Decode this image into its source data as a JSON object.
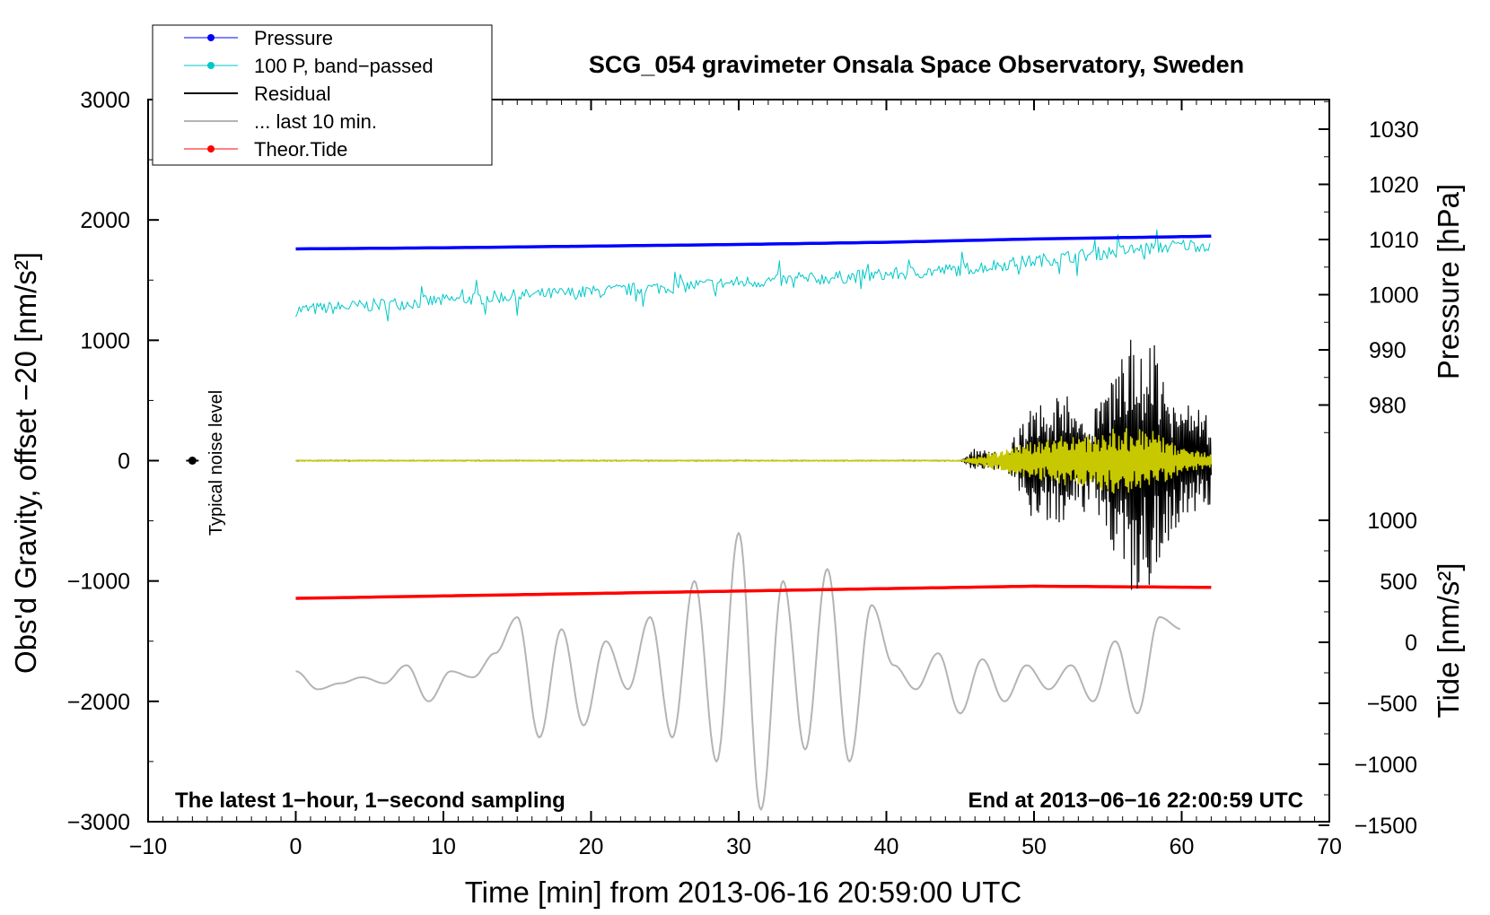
{
  "chart_data": {
    "type": "line",
    "title": "SCG_054 gravimeter Onsala Space Observatory, Sweden",
    "xlabel": "Time [min] from 2013-06-16 20:59:00 UTC",
    "ylabel_left": "Obs'd Gravity, offset −20 [nm/s²]",
    "ylabel_right_top": "Pressure [hPa]",
    "ylabel_right_bottom": "Tide [nm/s²]",
    "xlim": [
      -10,
      70
    ],
    "ylim": [
      -3000,
      3000
    ],
    "pressure_axis_range": [
      975,
      1035
    ],
    "tide_axis_range": [
      -1500,
      1000
    ],
    "x_ticks": [
      "−10",
      "0",
      "10",
      "20",
      "30",
      "40",
      "50",
      "60",
      "70"
    ],
    "y_ticks": [
      "3000",
      "2000",
      "1000",
      "0",
      "−1000",
      "−2000",
      "−3000"
    ],
    "pressure_ticks": [
      "1030",
      "1020",
      "1010",
      "1000",
      "990",
      "980"
    ],
    "tide_ticks": [
      "1000",
      "500",
      "0",
      "−500",
      "−1000",
      "−1500"
    ],
    "legend": {
      "placement": "top-left",
      "entries": [
        {
          "label": "Pressure",
          "color": "#0000ff",
          "marker": true
        },
        {
          "label": "100 P, band−passed",
          "color": "#00c8c8",
          "marker": true
        },
        {
          "label": "Residual",
          "color": "#000000",
          "marker": false
        },
        {
          "label": "... last 10 min.",
          "color": "#b4b4b4",
          "marker": false
        },
        {
          "label": "Theor.Tide",
          "color": "#ff0000",
          "marker": true
        }
      ]
    },
    "annotations": {
      "bottom_left": "The latest 1−hour, 1−second sampling",
      "bottom_right": "End at 2013−06−16 22:00:59 UTC",
      "noise_label": "Typical noise level",
      "noise_point": {
        "x": -7,
        "y": 0
      }
    },
    "series": [
      {
        "name": "Pressure",
        "axis": "pressure",
        "color": "#0000ff",
        "x": [
          0,
          10,
          20,
          30,
          40,
          50,
          62
        ],
        "y": [
          1008.3,
          1008.5,
          1008.8,
          1009.1,
          1009.5,
          1010.1,
          1010.6
        ]
      },
      {
        "name": "100 P, band-passed",
        "axis": "left",
        "color": "#00c8c8",
        "x": [
          0,
          5,
          10,
          15,
          20,
          25,
          30,
          35,
          40,
          45,
          50,
          55,
          60,
          62
        ],
        "y": [
          1250,
          1290,
          1330,
          1370,
          1400,
          1440,
          1480,
          1510,
          1545,
          1590,
          1660,
          1730,
          1790,
          1790
        ]
      },
      {
        "name": "Residual",
        "axis": "left",
        "color": "#000000",
        "x": [
          0,
          45,
          46,
          48,
          50,
          52,
          54,
          56,
          57,
          58,
          60,
          62
        ],
        "y": [
          0,
          0,
          100,
          60,
          500,
          550,
          400,
          900,
          1200,
          1000,
          500,
          400
        ]
      },
      {
        "name": "Residual (yellow overlay)",
        "axis": "left",
        "color": "#c8c800",
        "x": [
          0,
          45,
          50,
          54,
          56,
          58,
          60,
          62
        ],
        "y": [
          0,
          0,
          160,
          250,
          280,
          250,
          100,
          60
        ]
      },
      {
        "name": "Theor.Tide",
        "axis": "tide",
        "color": "#ff0000",
        "x": [
          0,
          10,
          20,
          30,
          40,
          50,
          62
        ],
        "y": [
          360,
          380,
          400,
          420,
          440,
          460,
          450
        ]
      },
      {
        "name": "... last 10 min.",
        "axis": "left",
        "color": "#b4b4b4",
        "x": [
          0,
          1.5,
          3,
          4.5,
          6,
          7.5,
          9,
          10.5,
          12,
          13.5,
          15,
          16.5,
          18,
          19.5,
          21,
          22.5,
          24,
          25.5,
          27,
          28.5,
          30,
          31.5,
          33,
          34.5,
          36,
          37.5,
          39,
          40.5,
          42,
          43.5,
          45,
          46.5,
          48,
          49.5,
          51,
          52.5,
          54,
          55.5,
          57,
          58.5,
          60
        ],
        "y": [
          -1750,
          -1900,
          -1850,
          -1800,
          -1850,
          -1700,
          -2000,
          -1750,
          -1800,
          -1600,
          -1300,
          -2300,
          -1400,
          -2200,
          -1500,
          -1900,
          -1300,
          -2300,
          -1000,
          -2500,
          -600,
          -2900,
          -1000,
          -2400,
          -900,
          -2500,
          -1200,
          -1700,
          -1900,
          -1600,
          -2100,
          -1650,
          -2000,
          -1700,
          -1900,
          -1700,
          -2000,
          -1500,
          -2100,
          -1300,
          -1400
        ]
      }
    ]
  }
}
